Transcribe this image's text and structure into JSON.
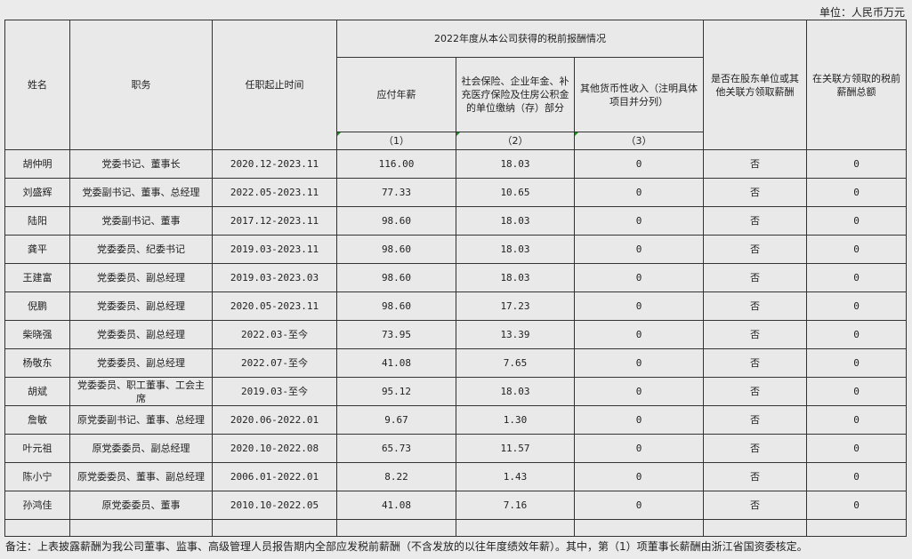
{
  "unit_label": "单位：人民币万元",
  "headers": {
    "name": "姓名",
    "position": "职务",
    "term": "任职起止时间",
    "group": "2022年度从本公司获得的税前报酬情况",
    "salary": "应付年薪",
    "insurance": "社会保险、企业年金、补充医疗保险及住房公积金的单位缴纳（存）部分",
    "other": "其他货币性收入（注明具体项目并分列）",
    "related": "是否在股东单位或其他关联方领取薪酬",
    "related_total": "在关联方领取的税前薪酬总额",
    "idx1": "（1）",
    "idx2": "（2）",
    "idx3": "（3）"
  },
  "rows": [
    {
      "name": "胡仲明",
      "position": "党委书记、董事长",
      "term": "2020.12-2023.11",
      "salary": "116.00",
      "insurance": "18.03",
      "other": "0",
      "related": "否",
      "related_total": "0"
    },
    {
      "name": "刘盛辉",
      "position": "党委副书记、董事、总经理",
      "term": "2022.05-2023.11",
      "salary": "77.33",
      "insurance": "10.65",
      "other": "0",
      "related": "否",
      "related_total": "0"
    },
    {
      "name": "陆阳",
      "position": "党委副书记、董事",
      "term": "2017.12-2023.11",
      "salary": "98.60",
      "insurance": "18.03",
      "other": "0",
      "related": "否",
      "related_total": "0"
    },
    {
      "name": "龚平",
      "position": "党委委员、纪委书记",
      "term": "2019.03-2023.11",
      "salary": "98.60",
      "insurance": "18.03",
      "other": "0",
      "related": "否",
      "related_total": "0"
    },
    {
      "name": "王建富",
      "position": "党委委员、副总经理",
      "term": "2019.03-2023.03",
      "salary": "98.60",
      "insurance": "18.03",
      "other": "0",
      "related": "否",
      "related_total": "0"
    },
    {
      "name": "倪鹏",
      "position": "党委委员、副总经理",
      "term": "2020.05-2023.11",
      "salary": "98.60",
      "insurance": "17.23",
      "other": "0",
      "related": "否",
      "related_total": "0"
    },
    {
      "name": "柴晓强",
      "position": "党委委员、副总经理",
      "term": "2022.03-至今",
      "salary": "73.95",
      "insurance": "13.39",
      "other": "0",
      "related": "否",
      "related_total": "0"
    },
    {
      "name": "杨敬东",
      "position": "党委委员、副总经理",
      "term": "2022.07-至今",
      "salary": "41.08",
      "insurance": "7.65",
      "other": "0",
      "related": "否",
      "related_total": "0"
    },
    {
      "name": "胡斌",
      "position": "党委委员、职工董事、工会主席",
      "term": "2019.03-至今",
      "salary": "95.12",
      "insurance": "18.03",
      "other": "0",
      "related": "否",
      "related_total": "0"
    },
    {
      "name": "詹敏",
      "position": "原党委副书记、董事、总经理",
      "term": "2020.06-2022.01",
      "salary": "9.67",
      "insurance": "1.30",
      "other": "0",
      "related": "否",
      "related_total": "0"
    },
    {
      "name": "叶元祖",
      "position": "原党委委员、副总经理",
      "term": "2020.10-2022.08",
      "salary": "65.73",
      "insurance": "11.57",
      "other": "0",
      "related": "否",
      "related_total": "0"
    },
    {
      "name": "陈小宁",
      "position": "原党委委员、董事、副总经理",
      "term": "2006.01-2022.01",
      "salary": "8.22",
      "insurance": "1.43",
      "other": "0",
      "related": "否",
      "related_total": "0"
    },
    {
      "name": "孙鸿佳",
      "position": "原党委委员、董事",
      "term": "2010.10-2022.05",
      "salary": "41.08",
      "insurance": "7.16",
      "other": "0",
      "related": "否",
      "related_total": "0"
    }
  ],
  "note": "备注：上表披露薪酬为我公司董事、监事、高级管理人员报告期内全部应发税前薪酬（不含发放的以往年度绩效年薪）。其中，第（1）项董事长薪酬由浙江省国资委核定。"
}
